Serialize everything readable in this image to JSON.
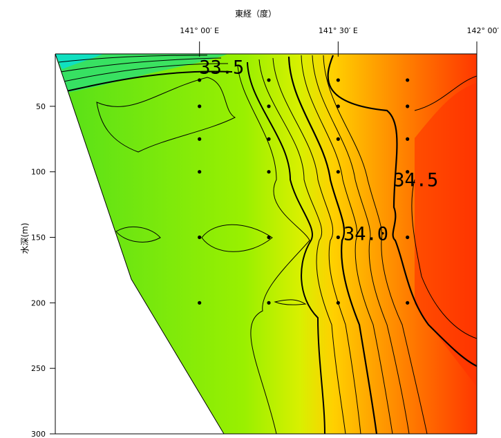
{
  "chart_data": {
    "type": "contour",
    "title": "",
    "xlabel": "東経（度）",
    "ylabel": "水深(m)",
    "x_ticks": [
      {
        "value": 141.0,
        "label": "141° 00′ E"
      },
      {
        "value": 141.5,
        "label": "141° 30′ E"
      },
      {
        "value": 142.0,
        "label": "142° 00′"
      }
    ],
    "y_ticks": [
      {
        "value": 50,
        "label": "50"
      },
      {
        "value": 100,
        "label": "100"
      },
      {
        "value": 150,
        "label": "150"
      },
      {
        "value": 200,
        "label": "200"
      },
      {
        "value": 250,
        "label": "250"
      },
      {
        "value": 300,
        "label": "300"
      }
    ],
    "xlim": [
      140.48,
      142.0
    ],
    "ylim": [
      300,
      10
    ],
    "y_inverted": true,
    "stations": [
      {
        "lon": 141.0,
        "depths": [
          30,
          50,
          75,
          100,
          150,
          200
        ]
      },
      {
        "lon": 141.25,
        "depths": [
          30,
          50,
          75,
          100,
          150,
          200
        ]
      },
      {
        "lon": 141.5,
        "depths": [
          30,
          50,
          75,
          100,
          150,
          200
        ]
      },
      {
        "lon": 141.75,
        "depths": [
          30,
          50,
          75,
          100,
          150,
          200
        ]
      }
    ],
    "contour_labels": [
      {
        "text": "33.5",
        "lon": 141.08,
        "depth": 25
      },
      {
        "text": "34.5",
        "lon": 141.78,
        "depth": 111
      },
      {
        "text": "34.0",
        "lon": 141.6,
        "depth": 152
      }
    ],
    "contour_interval": 0.1,
    "colors": {
      "low": "#00e0b0",
      "mid": "#a0f000",
      "high": "#ff3000"
    }
  }
}
